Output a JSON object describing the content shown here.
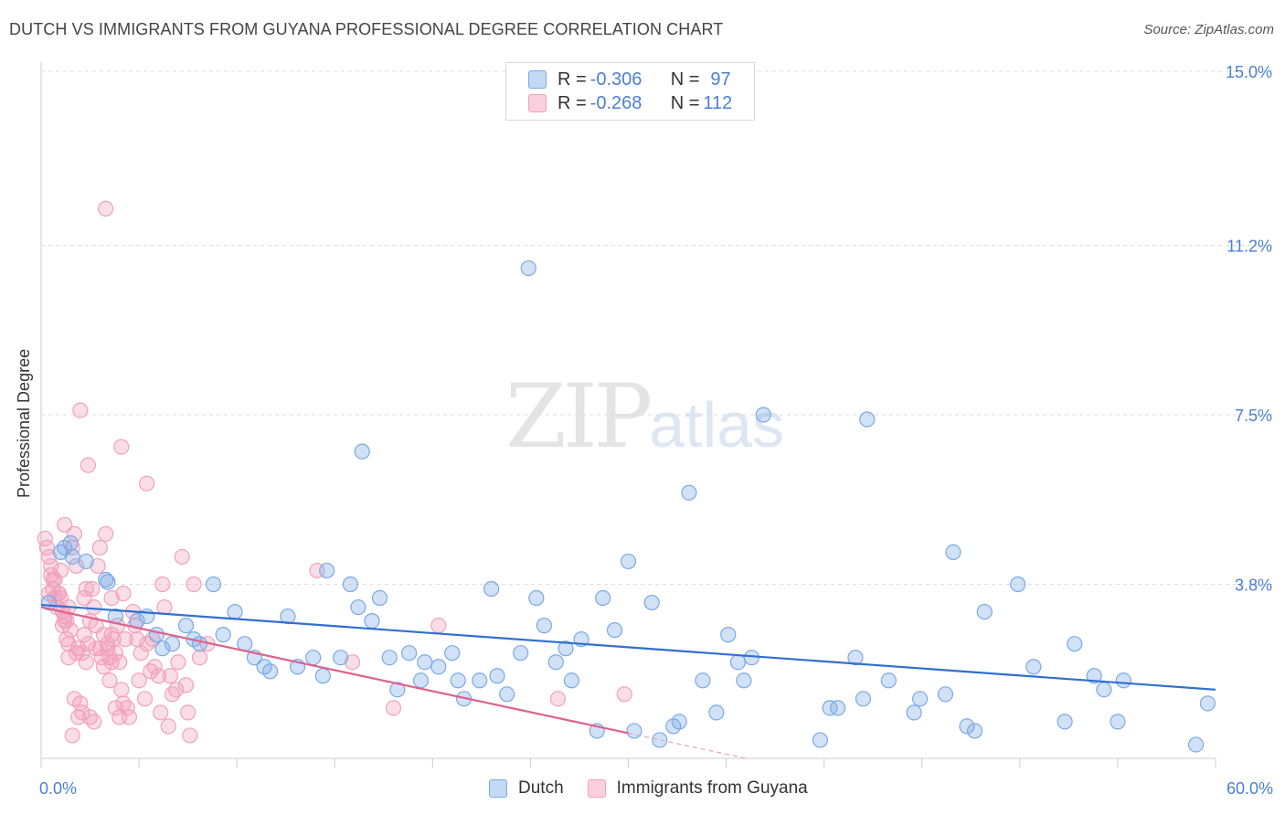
{
  "title": "DUTCH VS IMMIGRANTS FROM GUYANA PROFESSIONAL DEGREE CORRELATION CHART",
  "source": "Source: ZipAtlas.com",
  "watermark": {
    "zip": "ZIP",
    "atlas": "atlas"
  },
  "legend": {
    "dutch": {
      "r_label": "R = ",
      "r_value": "-0.306",
      "n_label": "N = ",
      "n_value": "97"
    },
    "guyana": {
      "r_label": "R = ",
      "r_value": "-0.268",
      "n_label": "N = ",
      "n_value": "112"
    }
  },
  "bottom_legend": {
    "dutch": "Dutch",
    "guyana": "Immigrants from Guyana"
  },
  "colors": {
    "dutch": "#7aa9e6",
    "dutch_line": "#2f6fd0",
    "guyana": "#f2a0bb",
    "guyana_line": "#e0608d",
    "axis_text": "#4a7fd4"
  },
  "chart_data": {
    "type": "scatter",
    "title": "DUTCH VS IMMIGRANTS FROM GUYANA PROFESSIONAL DEGREE CORRELATION CHART",
    "xlabel": "",
    "ylabel": "Professional Degree",
    "xlim": [
      0,
      60
    ],
    "ylim": [
      0,
      15
    ],
    "x_tick_labels": [
      "0.0%",
      "60.0%"
    ],
    "y_tick_values": [
      3.8,
      7.5,
      11.2,
      15.0
    ],
    "y_tick_labels": [
      "3.8%",
      "7.5%",
      "11.2%",
      "15.0%"
    ],
    "grid": true,
    "legend_position": "top-center",
    "series": [
      {
        "name": "Dutch",
        "r": -0.306,
        "n": 97,
        "trend": {
          "x": [
            0,
            60
          ],
          "y": [
            3.35,
            1.5
          ]
        },
        "points": [
          [
            1.0,
            4.5
          ],
          [
            1.2,
            4.6
          ],
          [
            1.6,
            4.4
          ],
          [
            1.5,
            4.7
          ],
          [
            2.3,
            4.3
          ],
          [
            3.3,
            3.9
          ],
          [
            3.4,
            3.85
          ],
          [
            3.8,
            3.1
          ],
          [
            4.9,
            3.0
          ],
          [
            5.4,
            3.1
          ],
          [
            5.9,
            2.7
          ],
          [
            6.2,
            2.4
          ],
          [
            6.7,
            2.5
          ],
          [
            7.4,
            2.9
          ],
          [
            7.8,
            2.6
          ],
          [
            8.1,
            2.5
          ],
          [
            8.8,
            3.8
          ],
          [
            9.3,
            2.7
          ],
          [
            9.9,
            3.2
          ],
          [
            10.4,
            2.5
          ],
          [
            10.9,
            2.2
          ],
          [
            11.4,
            2.0
          ],
          [
            11.7,
            1.9
          ],
          [
            12.6,
            3.1
          ],
          [
            13.1,
            2.0
          ],
          [
            13.9,
            2.2
          ],
          [
            14.4,
            1.8
          ],
          [
            14.6,
            4.1
          ],
          [
            15.3,
            2.2
          ],
          [
            15.8,
            3.8
          ],
          [
            16.2,
            3.3
          ],
          [
            16.4,
            6.7
          ],
          [
            16.9,
            3.0
          ],
          [
            17.3,
            3.5
          ],
          [
            17.8,
            2.2
          ],
          [
            18.2,
            1.5
          ],
          [
            18.8,
            2.3
          ],
          [
            19.4,
            1.7
          ],
          [
            19.6,
            2.1
          ],
          [
            20.3,
            2.0
          ],
          [
            21.0,
            2.3
          ],
          [
            21.3,
            1.7
          ],
          [
            21.6,
            1.3
          ],
          [
            22.4,
            1.7
          ],
          [
            23.0,
            3.7
          ],
          [
            23.3,
            1.8
          ],
          [
            23.8,
            1.4
          ],
          [
            24.5,
            2.3
          ],
          [
            25.3,
            3.5
          ],
          [
            24.9,
            10.7
          ],
          [
            25.7,
            2.9
          ],
          [
            26.3,
            2.1
          ],
          [
            26.8,
            2.4
          ],
          [
            27.1,
            1.7
          ],
          [
            27.6,
            2.6
          ],
          [
            28.4,
            0.6
          ],
          [
            28.7,
            3.5
          ],
          [
            29.3,
            2.8
          ],
          [
            30.0,
            4.3
          ],
          [
            30.3,
            0.6
          ],
          [
            31.2,
            3.4
          ],
          [
            31.6,
            0.4
          ],
          [
            32.3,
            0.7
          ],
          [
            32.6,
            0.8
          ],
          [
            33.1,
            5.8
          ],
          [
            33.8,
            1.7
          ],
          [
            34.5,
            1.0
          ],
          [
            35.1,
            2.7
          ],
          [
            35.6,
            2.1
          ],
          [
            35.9,
            1.7
          ],
          [
            36.3,
            2.2
          ],
          [
            36.9,
            7.5
          ],
          [
            39.8,
            0.4
          ],
          [
            40.3,
            1.1
          ],
          [
            40.7,
            1.1
          ],
          [
            41.6,
            2.2
          ],
          [
            42.0,
            1.3
          ],
          [
            42.2,
            7.4
          ],
          [
            43.3,
            1.7
          ],
          [
            44.6,
            1.0
          ],
          [
            44.9,
            1.3
          ],
          [
            46.2,
            1.4
          ],
          [
            46.6,
            4.5
          ],
          [
            47.3,
            0.7
          ],
          [
            47.7,
            0.6
          ],
          [
            48.2,
            3.2
          ],
          [
            49.9,
            3.8
          ],
          [
            50.7,
            2.0
          ],
          [
            52.3,
            0.8
          ],
          [
            52.8,
            2.5
          ],
          [
            53.8,
            1.8
          ],
          [
            54.3,
            1.5
          ],
          [
            55.0,
            0.8
          ],
          [
            55.3,
            1.7
          ],
          [
            59.0,
            0.3
          ],
          [
            59.6,
            1.2
          ],
          [
            0.4,
            3.4
          ]
        ]
      },
      {
        "name": "Immigrants from Guyana",
        "r": -0.268,
        "n": 112,
        "trend": {
          "x": [
            0,
            30
          ],
          "y": [
            3.3,
            0.55
          ]
        },
        "trend_dashed": {
          "x": [
            30,
            36
          ],
          "y": [
            0.55,
            0.0
          ]
        },
        "points": [
          [
            0.2,
            4.8
          ],
          [
            0.3,
            4.6
          ],
          [
            0.4,
            4.4
          ],
          [
            0.5,
            4.0
          ],
          [
            0.4,
            3.6
          ],
          [
            0.6,
            3.7
          ],
          [
            0.7,
            3.5
          ],
          [
            0.8,
            3.3
          ],
          [
            0.6,
            3.9
          ],
          [
            0.9,
            3.6
          ],
          [
            1.0,
            4.1
          ],
          [
            1.1,
            2.9
          ],
          [
            1.2,
            3.0
          ],
          [
            1.3,
            2.6
          ],
          [
            1.4,
            2.5
          ],
          [
            1.4,
            2.2
          ],
          [
            1.5,
            2.8
          ],
          [
            1.6,
            4.6
          ],
          [
            1.7,
            4.9
          ],
          [
            1.8,
            4.2
          ],
          [
            1.2,
            5.1
          ],
          [
            1.9,
            2.4
          ],
          [
            2.1,
            2.3
          ],
          [
            2.2,
            2.7
          ],
          [
            2.3,
            2.1
          ],
          [
            2.4,
            2.5
          ],
          [
            2.5,
            3.0
          ],
          [
            2.6,
            3.7
          ],
          [
            2.7,
            3.3
          ],
          [
            2.8,
            2.9
          ],
          [
            2.9,
            4.2
          ],
          [
            3.1,
            2.2
          ],
          [
            3.2,
            2.0
          ],
          [
            3.3,
            4.9
          ],
          [
            3.4,
            2.5
          ],
          [
            3.5,
            1.7
          ],
          [
            3.6,
            3.5
          ],
          [
            3.6,
            2.7
          ],
          [
            3.8,
            2.3
          ],
          [
            3.9,
            2.9
          ],
          [
            4.0,
            2.1
          ],
          [
            4.1,
            1.5
          ],
          [
            4.2,
            3.6
          ],
          [
            4.3,
            2.6
          ],
          [
            4.4,
            1.1
          ],
          [
            4.5,
            0.9
          ],
          [
            4.7,
            3.2
          ],
          [
            4.8,
            2.9
          ],
          [
            4.9,
            2.6
          ],
          [
            5.0,
            1.7
          ],
          [
            5.1,
            2.3
          ],
          [
            5.3,
            1.3
          ],
          [
            5.4,
            2.5
          ],
          [
            5.6,
            1.9
          ],
          [
            5.7,
            2.6
          ],
          [
            5.8,
            2.0
          ],
          [
            6.0,
            1.8
          ],
          [
            6.1,
            1.0
          ],
          [
            6.2,
            3.8
          ],
          [
            6.3,
            3.3
          ],
          [
            6.5,
            0.7
          ],
          [
            6.7,
            1.4
          ],
          [
            6.9,
            1.5
          ],
          [
            7.0,
            2.1
          ],
          [
            7.2,
            4.4
          ],
          [
            7.4,
            1.6
          ],
          [
            7.6,
            0.5
          ],
          [
            7.8,
            3.8
          ],
          [
            8.1,
            2.2
          ],
          [
            1.0,
            3.5
          ],
          [
            1.2,
            3.1
          ],
          [
            1.4,
            3.3
          ],
          [
            1.6,
            0.5
          ],
          [
            1.7,
            1.3
          ],
          [
            1.8,
            2.3
          ],
          [
            1.9,
            0.9
          ],
          [
            2.0,
            1.2
          ],
          [
            2.1,
            1.0
          ],
          [
            2.2,
            3.5
          ],
          [
            2.3,
            3.7
          ],
          [
            2.4,
            6.4
          ],
          [
            2.5,
            0.9
          ],
          [
            2.7,
            0.8
          ],
          [
            3.0,
            4.6
          ],
          [
            3.3,
            12.0
          ],
          [
            3.5,
            2.2
          ],
          [
            3.7,
            2.6
          ],
          [
            4.1,
            6.8
          ],
          [
            5.4,
            6.0
          ],
          [
            2.0,
            7.6
          ],
          [
            0.5,
            4.2
          ],
          [
            0.7,
            3.9
          ],
          [
            0.9,
            3.6
          ],
          [
            1.1,
            3.2
          ],
          [
            1.3,
            3.0
          ],
          [
            2.8,
            2.4
          ],
          [
            3.0,
            2.4
          ],
          [
            3.2,
            2.7
          ],
          [
            3.4,
            2.4
          ],
          [
            3.6,
            2.1
          ],
          [
            3.8,
            1.1
          ],
          [
            4.0,
            0.9
          ],
          [
            4.2,
            1.2
          ],
          [
            14.1,
            4.1
          ],
          [
            15.9,
            2.1
          ],
          [
            18.0,
            1.1
          ],
          [
            20.3,
            2.9
          ],
          [
            26.4,
            1.3
          ],
          [
            29.8,
            1.4
          ],
          [
            6.6,
            1.8
          ],
          [
            7.5,
            1.0
          ],
          [
            8.5,
            2.5
          ]
        ]
      }
    ]
  }
}
